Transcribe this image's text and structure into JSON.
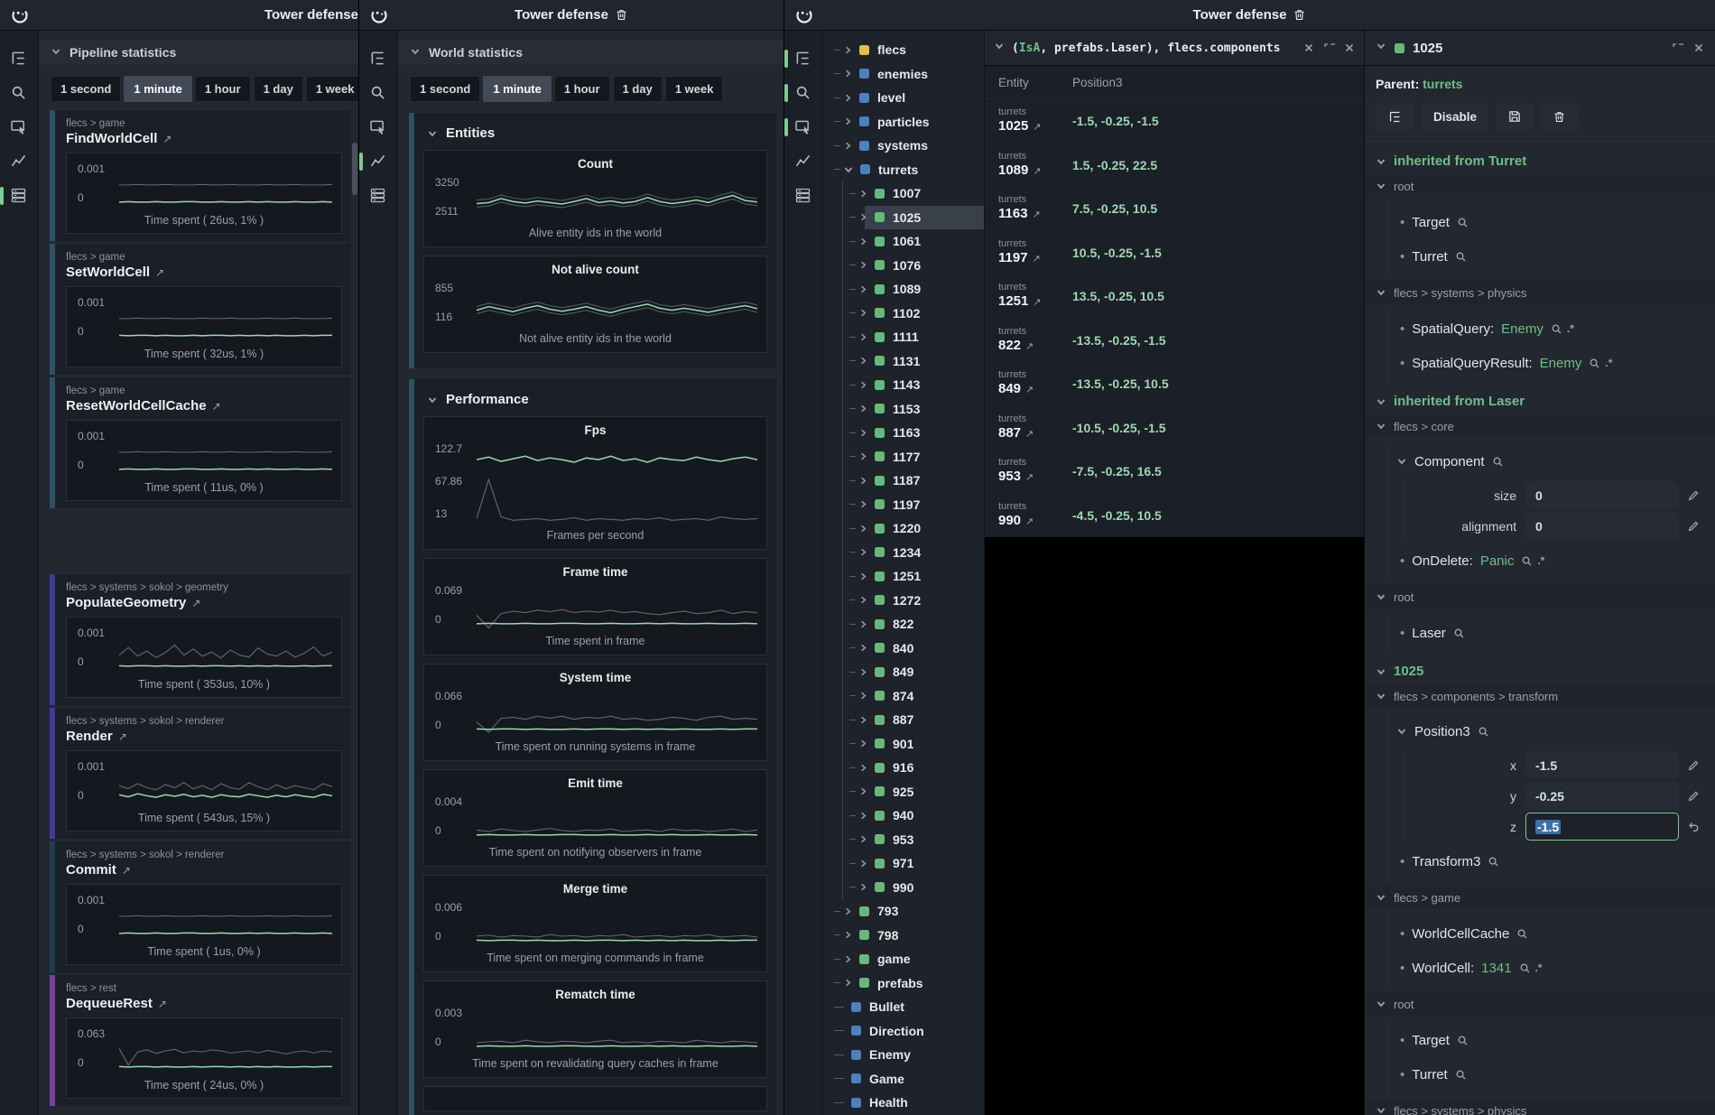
{
  "sidebar": {
    "icons": [
      "tree-icon",
      "search-icon",
      "canvas-icon",
      "stats-icon",
      "table-icon"
    ]
  },
  "w1": {
    "title": "Tower defense",
    "panel": "Pipeline statistics",
    "ranges": [
      "1 second",
      "1 minute",
      "1 hour",
      "1 day",
      "1 week"
    ],
    "active_range": "1 minute",
    "active_icons": [
      4
    ],
    "charts": [
      {
        "crumb": "flecs > game",
        "name": "FindWorldCell",
        "accent": "#2d5166",
        "ymax": "0.001",
        "ymin": "0",
        "caption": "Time spent ( 26us, 1% )",
        "green": "flat",
        "gray": "grayFlat"
      },
      {
        "crumb": "flecs > game",
        "name": "SetWorldCell",
        "accent": "#2d5166",
        "ymax": "0.001",
        "ymin": "0",
        "caption": "Time spent ( 32us, 1% )",
        "green": "flat2",
        "gray": "grayFlat"
      },
      {
        "crumb": "flecs > game",
        "name": "ResetWorldCellCache",
        "accent": "#2d5166",
        "ymax": "0.001",
        "ymin": "0",
        "caption": "Time spent ( 11us, 0% )",
        "green": "flat",
        "gray": "grayFlat",
        "gap_after": true
      },
      {
        "crumb": "flecs > systems > sokol > geometry",
        "name": "PopulateGeometry",
        "accent": "#3c3f94",
        "ymax": "0.001",
        "ymin": "0",
        "caption": "Time spent ( 353us, 10% )",
        "green": "flat2",
        "gray": "noisyMid"
      },
      {
        "crumb": "flecs > systems > sokol > renderer",
        "name": "Render",
        "accent": "#45389c",
        "ymax": "0.001",
        "ymin": "0",
        "caption": "Time spent ( 543us, 15% )",
        "green": "renderG",
        "gray": "renderGr"
      },
      {
        "crumb": "flecs > systems > sokol > renderer",
        "name": "Commit",
        "accent": "#1f3d4f",
        "ymax": "0.001",
        "ymin": "0",
        "caption": "Time spent ( 1us, 0% )",
        "green": "flat",
        "gray": "grayFlat"
      },
      {
        "crumb": "flecs > rest",
        "name": "DequeueRest",
        "accent": "#7d3fa3",
        "ymax": "0.063",
        "ymin": "0",
        "caption": "Time spent ( 24us, 0% )",
        "green": "flat2",
        "gray": "dequeue"
      }
    ]
  },
  "w2": {
    "title": "Tower defense",
    "panel": "World statistics",
    "ranges": [
      "1 second",
      "1 minute",
      "1 hour",
      "1 day",
      "1 week"
    ],
    "active_range": "1 minute",
    "active_icons": [
      3
    ],
    "sections": [
      {
        "title": "Entities",
        "charts": [
          {
            "name": "Count",
            "ymax": "3250",
            "ymin": "2511",
            "caption": "Alive entity ids in the world",
            "green": "countG",
            "band": true
          },
          {
            "name": "Not alive count",
            "ymax": "855",
            "ymin": "116",
            "caption": "Not alive entity ids in the world",
            "green": "notAliveG",
            "band": true
          }
        ]
      },
      {
        "title": "Performance",
        "charts": [
          {
            "name": "Fps",
            "labels": [
              "122.7",
              "67.86",
              "13"
            ],
            "caption": "Frames per second",
            "green": "fpsG",
            "gray": "fpsGr",
            "tall": true
          },
          {
            "name": "Frame time",
            "ymax": "0.069",
            "ymin": "0",
            "caption": "Time spent in frame",
            "green": "flat",
            "gray": "frameGr"
          },
          {
            "name": "System time",
            "ymax": "0.066",
            "ymin": "0",
            "caption": "Time spent on running systems in frame",
            "green": "flat2",
            "gray": "frameGr2"
          },
          {
            "name": "Emit time",
            "ymax": "0.004",
            "ymin": "0",
            "caption": "Time spent on notifying observers in frame",
            "green": "flat",
            "gray": "tinyA"
          },
          {
            "name": "Merge time",
            "ymax": "0.006",
            "ymin": "0",
            "caption": "Time spent on merging commands in frame",
            "green": "flat2",
            "gray": "tinyB"
          },
          {
            "name": "Rematch time",
            "ymax": "0.003",
            "ymin": "0",
            "caption": "Time spent on revalidating query caches in frame",
            "green": "flat",
            "gray": "tinyC"
          }
        ],
        "partial_after": true
      }
    ]
  },
  "w3": {
    "title": "Tower defense",
    "active_icons": [
      0,
      1,
      2
    ]
  },
  "tree": {
    "items": [
      [
        "flecs",
        "y",
        "exp",
        0
      ],
      [
        "enemies",
        "b",
        "exp",
        0
      ],
      [
        "level",
        "b",
        "exp",
        0
      ],
      [
        "particles",
        "b",
        "exp",
        0
      ],
      [
        "systems",
        "b",
        "exp",
        0
      ],
      [
        "turrets",
        "b",
        "open",
        0
      ],
      [
        "1007",
        "g",
        "exp",
        1
      ],
      [
        "1025",
        "g",
        "exp",
        1,
        true
      ],
      [
        "1061",
        "g",
        "exp",
        1
      ],
      [
        "1076",
        "g",
        "exp",
        1
      ],
      [
        "1089",
        "g",
        "exp",
        1
      ],
      [
        "1102",
        "g",
        "exp",
        1
      ],
      [
        "1111",
        "g",
        "exp",
        1
      ],
      [
        "1131",
        "g",
        "exp",
        1
      ],
      [
        "1143",
        "g",
        "exp",
        1
      ],
      [
        "1153",
        "g",
        "exp",
        1
      ],
      [
        "1163",
        "g",
        "exp",
        1
      ],
      [
        "1177",
        "g",
        "exp",
        1
      ],
      [
        "1187",
        "g",
        "exp",
        1
      ],
      [
        "1197",
        "g",
        "exp",
        1
      ],
      [
        "1220",
        "g",
        "exp",
        1
      ],
      [
        "1234",
        "g",
        "exp",
        1
      ],
      [
        "1251",
        "g",
        "exp",
        1
      ],
      [
        "1272",
        "g",
        "exp",
        1
      ],
      [
        "822",
        "g",
        "exp",
        1
      ],
      [
        "840",
        "g",
        "exp",
        1
      ],
      [
        "849",
        "g",
        "exp",
        1
      ],
      [
        "874",
        "g",
        "exp",
        1
      ],
      [
        "887",
        "g",
        "exp",
        1
      ],
      [
        "901",
        "g",
        "exp",
        1
      ],
      [
        "916",
        "g",
        "exp",
        1
      ],
      [
        "925",
        "g",
        "exp",
        1
      ],
      [
        "940",
        "g",
        "exp",
        1
      ],
      [
        "953",
        "g",
        "exp",
        1
      ],
      [
        "971",
        "g",
        "exp",
        1
      ],
      [
        "990",
        "g",
        "exp",
        1
      ],
      [
        "793",
        "g",
        "exp",
        0
      ],
      [
        "798",
        "g",
        "exp",
        0
      ],
      [
        "game",
        "g",
        "exp",
        0
      ],
      [
        "prefabs",
        "g",
        "exp",
        0
      ],
      [
        "Bullet",
        "b",
        "leaf",
        0
      ],
      [
        "Direction",
        "b",
        "leaf",
        0
      ],
      [
        "Enemy",
        "b",
        "leaf",
        0
      ],
      [
        "Game",
        "b",
        "leaf",
        0
      ],
      [
        "Health",
        "b",
        "leaf",
        0
      ]
    ]
  },
  "query": {
    "expr_open": "(",
    "keyword": "IsA",
    "expr_rest": ", prefabs.Laser), flecs.components",
    "columns": [
      "Entity",
      "Position3"
    ],
    "rows": [
      {
        "group": "turrets",
        "id": "1025",
        "pos": "-1.5, -0.25, -1.5"
      },
      {
        "group": "turrets",
        "id": "1089",
        "pos": "1.5, -0.25, 22.5"
      },
      {
        "group": "turrets",
        "id": "1163",
        "pos": "7.5, -0.25, 10.5"
      },
      {
        "group": "turrets",
        "id": "1197",
        "pos": "10.5, -0.25, -1.5"
      },
      {
        "group": "turrets",
        "id": "1251",
        "pos": "13.5, -0.25, 10.5"
      },
      {
        "group": "turrets",
        "id": "822",
        "pos": "-13.5, -0.25, -1.5"
      },
      {
        "group": "turrets",
        "id": "849",
        "pos": "-13.5, -0.25, 10.5"
      },
      {
        "group": "turrets",
        "id": "887",
        "pos": "-10.5, -0.25, -1.5"
      },
      {
        "group": "turrets",
        "id": "953",
        "pos": "-7.5, -0.25, 16.5"
      },
      {
        "group": "turrets",
        "id": "990",
        "pos": "-4.5, -0.25, 10.5"
      }
    ]
  },
  "inspector": {
    "id": "1025",
    "parent_label": "Parent:",
    "parent": "turrets",
    "buttons": {
      "disable": "Disable"
    },
    "sections": [
      {
        "header": "inherited from Turret",
        "groups": [
          {
            "crumb": "root",
            "items": [
              {
                "t": "tag",
                "label": "Target"
              },
              {
                "t": "tag",
                "label": "Turret"
              }
            ]
          },
          {
            "crumb": "flecs > systems > physics",
            "items": [
              {
                "t": "tag",
                "label": "SpatialQuery:",
                "value": "Enemy",
                "pair": true
              },
              {
                "t": "tag",
                "label": "SpatialQueryResult:",
                "value": "Enemy",
                "pair": true
              }
            ]
          }
        ]
      },
      {
        "header": "inherited from Laser",
        "groups": [
          {
            "crumb": "flecs > core",
            "items": [
              {
                "t": "comp",
                "label": "Component"
              },
              {
                "t": "field",
                "label": "size",
                "value": "0"
              },
              {
                "t": "field",
                "label": "alignment",
                "value": "0"
              },
              {
                "t": "tag",
                "label": "OnDelete:",
                "value": "Panic",
                "pair": true
              }
            ]
          },
          {
            "crumb": "root",
            "items": [
              {
                "t": "tag",
                "label": "Laser"
              }
            ]
          }
        ]
      },
      {
        "header": "1025",
        "groups": [
          {
            "crumb": "flecs > components > transform",
            "items": [
              {
                "t": "comp",
                "label": "Position3"
              },
              {
                "t": "field",
                "label": "x",
                "value": "-1.5"
              },
              {
                "t": "field",
                "label": "y",
                "value": "-0.25"
              },
              {
                "t": "field",
                "label": "z",
                "value": "-1.5",
                "editing": true
              },
              {
                "t": "tag",
                "label": "Transform3"
              }
            ]
          },
          {
            "crumb": "flecs > game",
            "items": [
              {
                "t": "tag",
                "label": "WorldCellCache"
              },
              {
                "t": "tag",
                "label": "WorldCell:",
                "value": "1341",
                "pair": true
              }
            ]
          },
          {
            "crumb": "root",
            "items": [
              {
                "t": "tag",
                "label": "Target"
              },
              {
                "t": "tag",
                "label": "Turret"
              }
            ]
          },
          {
            "crumb": "flecs > systems > physics",
            "items": [
              {
                "t": "tag",
                "label": "SpatialQueryResult:",
                "value": "Enemy",
                "pair": true
              }
            ]
          }
        ]
      }
    ]
  },
  "sparklines": {
    "flat": [
      0.18,
      0.19,
      0.18,
      0.18,
      0.19,
      0.18,
      0.18,
      0.19,
      0.19,
      0.18,
      0.18,
      0.19,
      0.18,
      0.18,
      0.19,
      0.18,
      0.19,
      0.18,
      0.18,
      0.19,
      0.18,
      0.18,
      0.19,
      0.18
    ],
    "flat2": [
      0.19,
      0.18,
      0.19,
      0.19,
      0.18,
      0.19,
      0.18,
      0.18,
      0.19,
      0.18,
      0.19,
      0.19,
      0.18,
      0.19,
      0.18,
      0.19,
      0.18,
      0.19,
      0.18,
      0.18,
      0.19,
      0.18,
      0.19,
      0.19
    ],
    "grayFlat": [
      0.52,
      0.52,
      0.53,
      0.52,
      0.52,
      0.53,
      0.52,
      0.52,
      0.52,
      0.53,
      0.52,
      0.52,
      0.53,
      0.52,
      0.52,
      0.52,
      0.53,
      0.52,
      0.52,
      0.53,
      0.52,
      0.52,
      0.52,
      0.53
    ],
    "tinyA": [
      0.28,
      0.25,
      0.3,
      0.27,
      0.25,
      0.28,
      0.31,
      0.27,
      0.25,
      0.28,
      0.27,
      0.3,
      0.25,
      0.27,
      0.28,
      0.25,
      0.3,
      0.27,
      0.28,
      0.25,
      0.27,
      0.3,
      0.25,
      0.28
    ],
    "tinyB": [
      0.27,
      0.29,
      0.25,
      0.28,
      0.27,
      0.25,
      0.3,
      0.27,
      0.28,
      0.25,
      0.28,
      0.27,
      0.3,
      0.25,
      0.27,
      0.28,
      0.25,
      0.28,
      0.27,
      0.3,
      0.25,
      0.27,
      0.28,
      0.25
    ],
    "tinyC": [
      0.25,
      0.27,
      0.28,
      0.25,
      0.3,
      0.27,
      0.25,
      0.28,
      0.27,
      0.25,
      0.28,
      0.3,
      0.25,
      0.27,
      0.25,
      0.28,
      0.27,
      0.25,
      0.3,
      0.27,
      0.25,
      0.28,
      0.27,
      0.25
    ],
    "noisyMid": [
      0.4,
      0.55,
      0.38,
      0.48,
      0.35,
      0.45,
      0.6,
      0.4,
      0.52,
      0.38,
      0.46,
      0.34,
      0.5,
      0.4,
      0.36,
      0.54,
      0.42,
      0.38,
      0.48,
      0.36,
      0.44,
      0.56,
      0.38,
      0.46
    ],
    "renderG": [
      0.28,
      0.24,
      0.3,
      0.26,
      0.23,
      0.28,
      0.25,
      0.29,
      0.24,
      0.27,
      0.23,
      0.28,
      0.25,
      0.24,
      0.29,
      0.26,
      0.23,
      0.27,
      0.24,
      0.28,
      0.25,
      0.23,
      0.29,
      0.26
    ],
    "renderGr": [
      0.46,
      0.4,
      0.5,
      0.42,
      0.38,
      0.48,
      0.42,
      0.52,
      0.4,
      0.46,
      0.38,
      0.5,
      0.42,
      0.39,
      0.52,
      0.44,
      0.38,
      0.48,
      0.4,
      0.46,
      0.42,
      0.38,
      0.5,
      0.44
    ],
    "dequeue": [
      0.55,
      0.22,
      0.48,
      0.52,
      0.45,
      0.5,
      0.53,
      0.46,
      0.5,
      0.48,
      0.52,
      0.5,
      0.46,
      0.48,
      0.5,
      0.46,
      0.51,
      0.48,
      0.44,
      0.48,
      0.5,
      0.46,
      0.5,
      0.48
    ],
    "countG": [
      0.42,
      0.44,
      0.52,
      0.46,
      0.43,
      0.47,
      0.44,
      0.41,
      0.46,
      0.52,
      0.44,
      0.47,
      0.43,
      0.46,
      0.54,
      0.46,
      0.42,
      0.45,
      0.49,
      0.44,
      0.52,
      0.58,
      0.48,
      0.45
    ],
    "notAliveG": [
      0.4,
      0.47,
      0.42,
      0.37,
      0.44,
      0.49,
      0.42,
      0.38,
      0.42,
      0.47,
      0.4,
      0.35,
      0.42,
      0.47,
      0.52,
      0.44,
      0.4,
      0.44,
      0.4,
      0.36,
      0.41,
      0.45,
      0.49,
      0.43
    ],
    "fpsG": [
      0.78,
      0.81,
      0.76,
      0.79,
      0.82,
      0.77,
      0.8,
      0.78,
      0.75,
      0.8,
      0.78,
      0.82,
      0.77,
      0.79,
      0.75,
      0.8,
      0.78,
      0.77,
      0.81,
      0.78,
      0.76,
      0.79,
      0.81,
      0.78
    ],
    "fpsGr": [
      0.1,
      0.55,
      0.12,
      0.08,
      0.09,
      0.1,
      0.08,
      0.09,
      0.11,
      0.08,
      0.1,
      0.09,
      0.08,
      0.1,
      0.09,
      0.11,
      0.08,
      0.09,
      0.1,
      0.08,
      0.12,
      0.1,
      0.09,
      0.1
    ],
    "frameGr": [
      0.35,
      0.1,
      0.38,
      0.43,
      0.4,
      0.45,
      0.42,
      0.46,
      0.4,
      0.43,
      0.41,
      0.45,
      0.4,
      0.42,
      0.38,
      0.36,
      0.4,
      0.43,
      0.38,
      0.4,
      0.45,
      0.38,
      0.42,
      0.4
    ],
    "frameGr2": [
      0.33,
      0.12,
      0.4,
      0.42,
      0.38,
      0.44,
      0.4,
      0.44,
      0.38,
      0.42,
      0.4,
      0.44,
      0.38,
      0.4,
      0.36,
      0.38,
      0.42,
      0.4,
      0.36,
      0.42,
      0.44,
      0.38,
      0.4,
      0.38
    ]
  }
}
